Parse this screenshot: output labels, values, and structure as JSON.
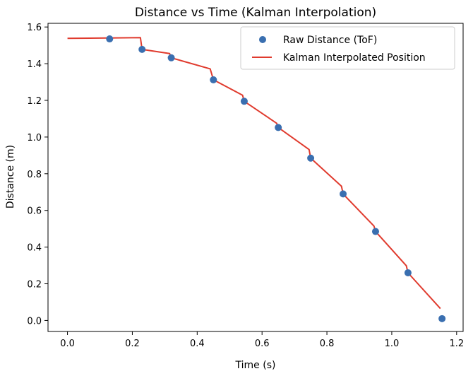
{
  "chart_data": {
    "type": "line",
    "title": "Distance vs Time (Kalman Interpolation)",
    "xlabel": "Time (s)",
    "ylabel": "Distance (m)",
    "xlim": [
      -0.06,
      1.22
    ],
    "ylim": [
      -0.06,
      1.62
    ],
    "xticks": [
      0.0,
      0.2,
      0.4,
      0.6,
      0.8,
      1.0,
      1.2
    ],
    "xtick_labels": [
      "0.0",
      "0.2",
      "0.4",
      "0.6",
      "0.8",
      "1.0",
      "1.2"
    ],
    "yticks": [
      0.0,
      0.2,
      0.4,
      0.6,
      0.8,
      1.0,
      1.2,
      1.4,
      1.6
    ],
    "ytick_labels": [
      "0.0",
      "0.2",
      "0.4",
      "0.6",
      "0.8",
      "1.0",
      "1.2",
      "1.4",
      "1.6"
    ],
    "grid": false,
    "legend_position": "top-right",
    "series": [
      {
        "name": "Raw Distance (ToF)",
        "kind": "scatter",
        "color": "#3a6fb0",
        "x": [
          0.13,
          0.23,
          0.32,
          0.45,
          0.545,
          0.65,
          0.75,
          0.85,
          0.95,
          1.05,
          1.155
        ],
        "y": [
          1.535,
          1.478,
          1.432,
          1.312,
          1.195,
          1.052,
          0.885,
          0.69,
          0.485,
          0.26,
          0.01
        ]
      },
      {
        "name": "Kalman Interpolated Position",
        "kind": "line",
        "color": "#e03b2e",
        "x": [
          0.0,
          0.225,
          0.23,
          0.315,
          0.32,
          0.44,
          0.45,
          0.54,
          0.545,
          0.645,
          0.65,
          0.745,
          0.75,
          0.845,
          0.85,
          0.945,
          0.95,
          1.045,
          1.05,
          1.15
        ],
        "y": [
          1.538,
          1.542,
          1.478,
          1.455,
          1.432,
          1.372,
          1.312,
          1.228,
          1.195,
          1.075,
          1.052,
          0.932,
          0.885,
          0.732,
          0.69,
          0.515,
          0.485,
          0.298,
          0.26,
          0.065
        ]
      }
    ]
  }
}
